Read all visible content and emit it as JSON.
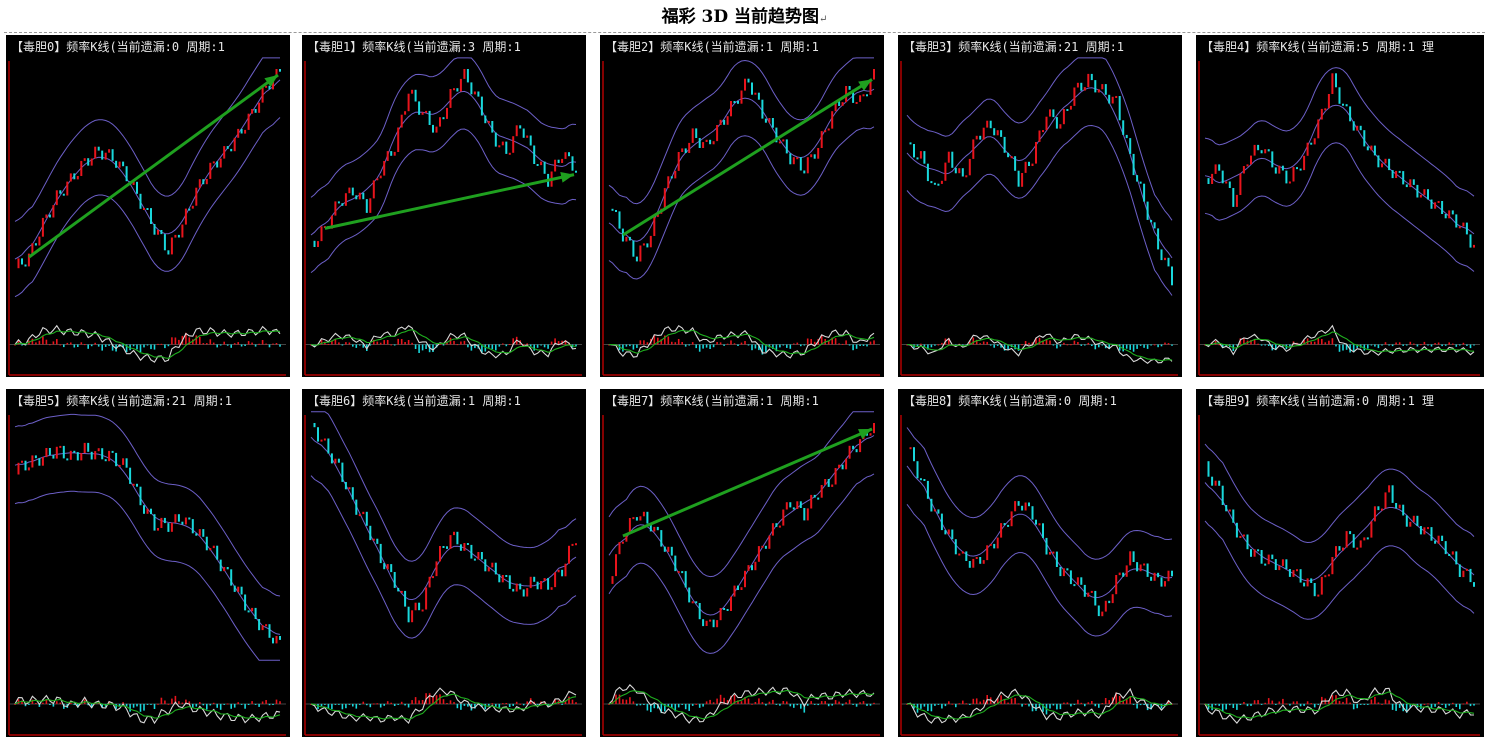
{
  "page_title": "福彩 3D 当前趋势图",
  "return_mark": "↵",
  "colors": {
    "background": "#000000",
    "axis": "#b00000",
    "up_candle": "#e8141c",
    "down_candle": "#19d8dc",
    "band": "#6c5fc7",
    "trend_arrow": "#1fa01f",
    "osc_fast": "#d8d8d8",
    "osc_slow": "#1fae1f"
  },
  "panels": [
    {
      "title": "【毒胆0】频率K线(当前遗漏:0 周期:1"
    },
    {
      "title": "【毒胆1】频率K线(当前遗漏:3 周期:1"
    },
    {
      "title": "【毒胆2】频率K线(当前遗漏:1 周期:1"
    },
    {
      "title": "【毒胆3】频率K线(当前遗漏:21 周期:1"
    },
    {
      "title": "【毒胆4】频率K线(当前遗漏:5 周期:1 理"
    },
    {
      "title": "【毒胆5】频率K线(当前遗漏:21 周期:1"
    },
    {
      "title": "【毒胆6】频率K线(当前遗漏:1 周期:1"
    },
    {
      "title": "【毒胆7】频率K线(当前遗漏:1 周期:1"
    },
    {
      "title": "【毒胆8】频率K线(当前遗漏:0 周期:1"
    },
    {
      "title": "【毒胆9】频率K线(当前遗漏:0 周期:1 理"
    }
  ],
  "chart_data": [
    {
      "type": "line",
      "series": [
        {
          "values": [
            10,
            15,
            30,
            42,
            50,
            58,
            63,
            60,
            52,
            40,
            28,
            18,
            30,
            45,
            55,
            62,
            70,
            80,
            92,
            100
          ]
        }
      ],
      "trend_arrow": true
    },
    {
      "type": "line",
      "series": [
        {
          "values": [
            20,
            28,
            40,
            45,
            38,
            55,
            65,
            90,
            80,
            72,
            88,
            98,
            85,
            70,
            62,
            75,
            60,
            50,
            62,
            55
          ]
        }
      ],
      "trend_arrow": true
    },
    {
      "type": "line",
      "series": [
        {
          "values": [
            40,
            25,
            15,
            25,
            45,
            60,
            70,
            65,
            75,
            85,
            95,
            80,
            70,
            60,
            55,
            65,
            80,
            90,
            85,
            98
          ]
        }
      ],
      "trend_arrow": true
    },
    {
      "type": "line",
      "series": [
        {
          "values": [
            65,
            60,
            45,
            60,
            50,
            70,
            75,
            65,
            50,
            60,
            80,
            75,
            90,
            95,
            90,
            85,
            60,
            40,
            20,
            5
          ]
        }
      ],
      "trend_arrow": false
    },
    {
      "type": "line",
      "series": [
        {
          "values": [
            50,
            55,
            40,
            60,
            65,
            55,
            50,
            60,
            75,
            95,
            80,
            70,
            60,
            55,
            50,
            45,
            40,
            35,
            30,
            20
          ]
        }
      ],
      "trend_arrow": false
    },
    {
      "type": "line",
      "series": [
        {
          "values": [
            80,
            82,
            85,
            88,
            85,
            88,
            86,
            85,
            80,
            65,
            55,
            55,
            58,
            52,
            45,
            35,
            25,
            15,
            8,
            2
          ]
        }
      ],
      "trend_arrow": false
    },
    {
      "type": "line",
      "series": [
        {
          "values": [
            100,
            90,
            80,
            65,
            55,
            40,
            30,
            15,
            20,
            40,
            50,
            45,
            40,
            35,
            30,
            25,
            30,
            28,
            35,
            50
          ]
        }
      ],
      "trend_arrow": false
    },
    {
      "type": "line",
      "series": [
        {
          "values": [
            30,
            50,
            60,
            55,
            45,
            35,
            20,
            10,
            15,
            25,
            35,
            45,
            55,
            65,
            60,
            70,
            75,
            85,
            92,
            100
          ]
        }
      ],
      "trend_arrow": true
    },
    {
      "type": "line",
      "series": [
        {
          "values": [
            90,
            75,
            60,
            50,
            40,
            38,
            45,
            55,
            65,
            60,
            45,
            35,
            30,
            25,
            15,
            30,
            40,
            35,
            30,
            32
          ]
        }
      ],
      "trend_arrow": false
    },
    {
      "type": "line",
      "series": [
        {
          "values": [
            80,
            70,
            55,
            45,
            40,
            38,
            35,
            30,
            25,
            40,
            50,
            45,
            60,
            70,
            58,
            55,
            50,
            45,
            35,
            30
          ]
        }
      ],
      "trend_arrow": false
    }
  ]
}
